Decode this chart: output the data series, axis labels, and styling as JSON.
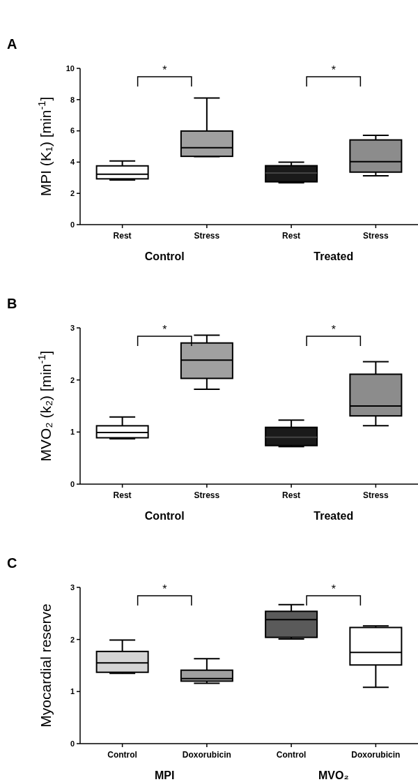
{
  "chart_data": [
    {
      "type": "box",
      "title": "A",
      "ylabel": "MPI (K₁) [min$^{-1}$]",
      "categories": [
        "Rest",
        "Stress",
        "Rest",
        "Stress"
      ],
      "colors": [
        "#ffffff",
        "#a0a0a0",
        "#1a1a1a",
        "#8c8c8c"
      ],
      "ylim": [
        0,
        10
      ],
      "yticks": [
        0,
        2,
        4,
        6,
        8,
        10
      ],
      "boxes": [
        {
          "low": 2.86,
          "q1": 2.93,
          "median": 3.22,
          "q3": 3.76,
          "high": 4.07
        },
        {
          "low": 4.35,
          "q1": 4.37,
          "median": 4.92,
          "q3": 5.99,
          "high": 8.1
        },
        {
          "low": 2.68,
          "q1": 2.74,
          "median": 3.3,
          "q3": 3.77,
          "high": 4.0
        },
        {
          "low": 3.12,
          "q1": 3.36,
          "median": 4.03,
          "q3": 5.42,
          "high": 5.71
        }
      ],
      "annotations": [
        "Control",
        "Treated",
        "*",
        "*"
      ]
    },
    {
      "type": "box",
      "title": "B",
      "ylabel": "MVO₂ (k₂) [min$^{-1}$]",
      "categories": [
        "Rest",
        "Stress",
        "Rest",
        "Stress"
      ],
      "colors": [
        "#ffffff",
        "#a0a0a0",
        "#1a1a1a",
        "#8c8c8c"
      ],
      "ylim": [
        0,
        3
      ],
      "yticks": [
        0,
        1,
        2,
        3
      ],
      "boxes": [
        {
          "low": 0.87,
          "q1": 0.89,
          "median": 0.99,
          "q3": 1.12,
          "high": 1.29
        },
        {
          "low": 1.82,
          "q1": 2.03,
          "median": 2.38,
          "q3": 2.71,
          "high": 2.86
        },
        {
          "low": 0.72,
          "q1": 0.74,
          "median": 0.9,
          "q3": 1.09,
          "high": 1.23
        },
        {
          "low": 1.12,
          "q1": 1.31,
          "median": 1.5,
          "q3": 2.11,
          "high": 2.35
        }
      ],
      "annotations": [
        "Control",
        "Treated",
        "*",
        "*"
      ]
    },
    {
      "type": "box",
      "title": "C",
      "ylabel": "Myocardial reserve",
      "categories": [
        "Control",
        "Doxorubicin",
        "Control",
        "Doxorubicin"
      ],
      "colors": [
        "#d4d4d4",
        "#a0a0a0",
        "#5a5a5a",
        "#ffffff"
      ],
      "ylim": [
        0,
        3
      ],
      "yticks": [
        0,
        1,
        2,
        3
      ],
      "boxes": [
        {
          "low": 1.35,
          "q1": 1.37,
          "median": 1.55,
          "q3": 1.77,
          "high": 1.99
        },
        {
          "low": 1.16,
          "q1": 1.2,
          "median": 1.25,
          "q3": 1.41,
          "high": 1.63
        },
        {
          "low": 2.01,
          "q1": 2.04,
          "median": 2.38,
          "q3": 2.54,
          "high": 2.67
        },
        {
          "low": 1.08,
          "q1": 1.51,
          "median": 1.75,
          "q3": 2.23,
          "high": 2.26
        }
      ],
      "annotations": [
        "MPI",
        "MVO₂",
        "*",
        "*"
      ]
    }
  ]
}
